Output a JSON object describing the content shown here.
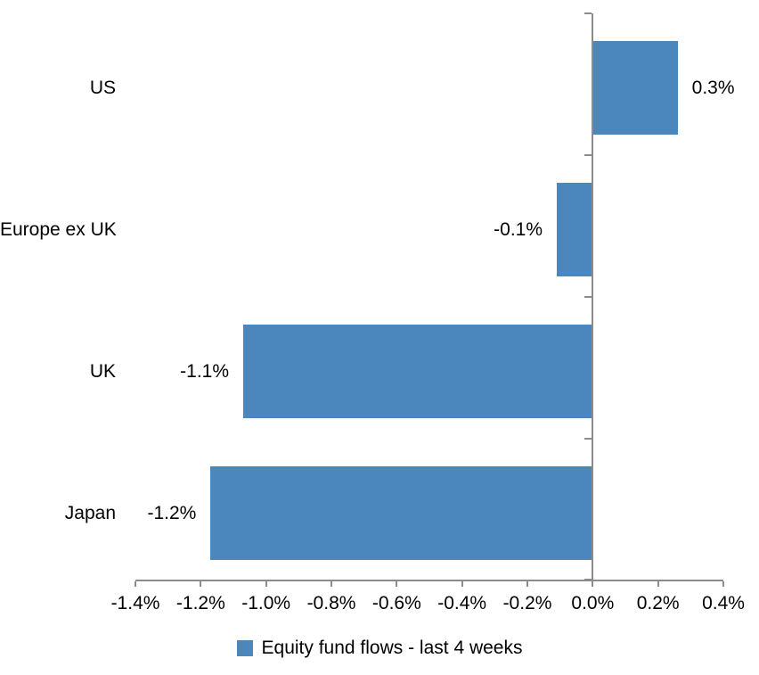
{
  "chart_data": {
    "type": "bar",
    "orientation": "horizontal",
    "title": "",
    "xlabel": "",
    "ylabel": "",
    "categories": [
      "US",
      "Europe ex UK",
      "UK",
      "Japan"
    ],
    "series": [
      {
        "name": "Equity fund flows - last 4 weeks",
        "values": [
          0.3,
          -0.1,
          -1.1,
          -1.2
        ],
        "value_labels": [
          "0.3%",
          "-0.1%",
          "-1.1%",
          "-1.2%"
        ],
        "bar_extents_pct_as_drawn": [
          0.26,
          -0.11,
          -1.07,
          -1.17
        ]
      }
    ],
    "xlim": [
      -1.4,
      0.4
    ],
    "x_tick_values": [
      -1.4,
      -1.2,
      -1.0,
      -0.8,
      -0.6,
      -0.4,
      -0.2,
      0.0,
      0.2,
      0.4
    ],
    "x_tick_labels": [
      "-1.4%",
      "-1.2%",
      "-1.0%",
      "-0.8%",
      "-0.6%",
      "-0.4%",
      "-0.2%",
      "0.0%",
      "0.2%",
      "0.4%"
    ],
    "grid": false,
    "legend_position": "bottom",
    "data_label_position": "outside-end",
    "colors": {
      "bar": "#4B86BD",
      "axis": "#8C8C8C",
      "text": "#000000",
      "background": "#FFFFFF"
    }
  },
  "legend": {
    "label": "Equity fund flows - last 4 weeks"
  }
}
